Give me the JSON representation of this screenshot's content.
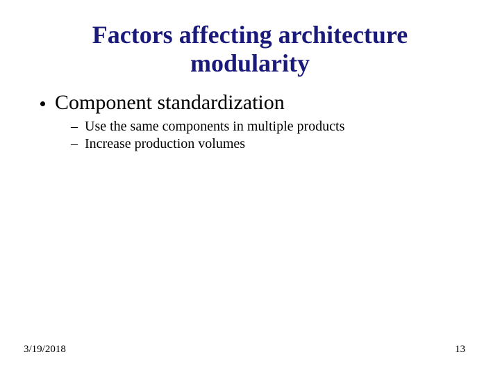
{
  "title": {
    "line1": "Factors affecting architecture",
    "line2": "modularity",
    "color": "#1a1a7a",
    "fontsize": 36
  },
  "bullets": [
    {
      "text": "Component standardization",
      "fontsize": 30,
      "dot_color": "#000000",
      "sub": [
        {
          "text": "Use the same components in multiple products",
          "fontsize": 20
        },
        {
          "text": "Increase production volumes",
          "fontsize": 20
        }
      ]
    }
  ],
  "footer": {
    "date": "3/19/2018",
    "page": "13",
    "fontsize": 15
  }
}
